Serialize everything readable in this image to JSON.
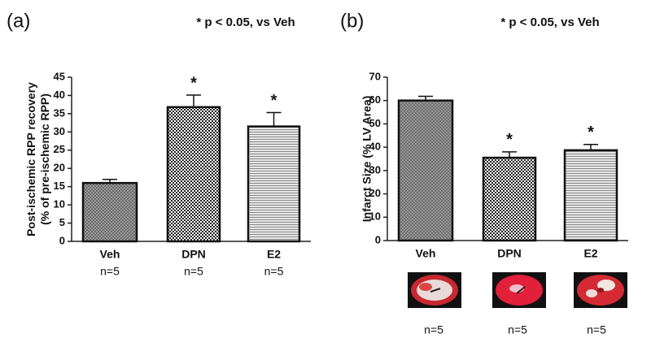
{
  "chart_data": [
    {
      "type": "bar",
      "panel_label": "(a)",
      "annotation": "* p < 0.05, vs Veh",
      "ylabel": [
        "Post-ischemic RPP recovery",
        "(% of pre-ischemic RPP)"
      ],
      "categories": [
        "Veh",
        "DPN",
        "E2"
      ],
      "values": [
        16,
        36.8,
        31.5
      ],
      "errors": [
        1,
        3.3,
        3.8
      ],
      "significance": [
        null,
        "*",
        "*"
      ],
      "n_labels": [
        "n=5",
        "n=5",
        "n=5"
      ],
      "patterns": [
        "fine",
        "checker",
        "lines"
      ],
      "ylim": [
        0,
        45
      ],
      "yticks": [
        0,
        5,
        10,
        15,
        20,
        25,
        30,
        35,
        40,
        45
      ]
    },
    {
      "type": "bar",
      "panel_label": "(b)",
      "annotation": "* p < 0.05, vs Veh",
      "ylabel": [
        "Infarct Size (% LV Area)"
      ],
      "categories": [
        "Veh",
        "DPN",
        "E2"
      ],
      "values": [
        60,
        35.5,
        38.7
      ],
      "errors": [
        1.8,
        2.5,
        2.5
      ],
      "significance": [
        null,
        "*",
        "*"
      ],
      "n_labels": [
        "n=5",
        "n=5",
        "n=5"
      ],
      "patterns": [
        "fine",
        "checker",
        "lines"
      ],
      "ylim": [
        0,
        70
      ],
      "yticks": [
        0,
        10,
        20,
        30,
        40,
        50,
        60,
        70
      ]
    }
  ]
}
